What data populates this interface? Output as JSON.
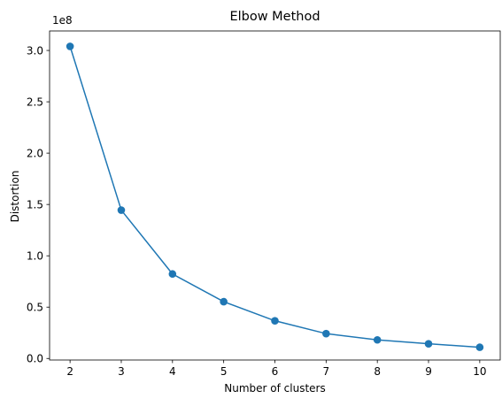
{
  "chart_data": {
    "type": "line",
    "title": "Elbow Method",
    "xlabel": "Number of clusters",
    "ylabel": "Distortion",
    "y_scale_label": "1e8",
    "x": [
      2,
      3,
      4,
      5,
      6,
      7,
      8,
      9,
      10
    ],
    "series": [
      {
        "values": [
          304000000,
          144500000,
          82300000,
          55300000,
          36700000,
          24200000,
          18100000,
          14300000,
          10900000
        ],
        "color": "#1f77b4",
        "marker": "circle"
      }
    ],
    "xlim": [
      1.6,
      10.4
    ],
    "ylim": [
      -1500000,
      319000000
    ],
    "x_ticks": [
      2,
      3,
      4,
      5,
      6,
      7,
      8,
      9,
      10
    ],
    "x_tick_labels": [
      "2",
      "3",
      "4",
      "5",
      "6",
      "7",
      "8",
      "9",
      "10"
    ],
    "y_ticks": [
      0,
      50000000,
      100000000,
      150000000,
      200000000,
      250000000,
      300000000
    ],
    "y_tick_labels": [
      "0.0",
      "0.5",
      "1.0",
      "1.5",
      "2.0",
      "2.5",
      "3.0"
    ],
    "grid": false,
    "legend": "none"
  }
}
